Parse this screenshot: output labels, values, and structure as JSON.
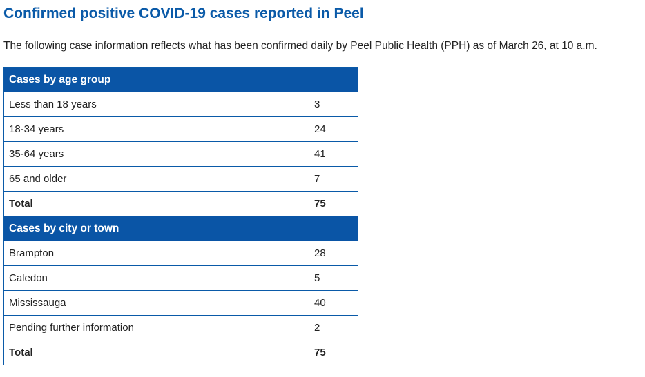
{
  "page": {
    "title": "Confirmed positive COVID-19 cases reported in Peel",
    "intro": "The following case information reflects what has been confirmed daily by Peel Public Health (PPH) as of March 26, at 10 a.m."
  },
  "age_section": {
    "header": "Cases by age group",
    "rows": [
      {
        "label": "Less than 18 years",
        "value": "3"
      },
      {
        "label": "18-34 years",
        "value": "24"
      },
      {
        "label": "35-64 years",
        "value": "41"
      },
      {
        "label": "65 and older",
        "value": "7"
      }
    ],
    "total": {
      "label": "Total",
      "value": "75"
    }
  },
  "city_section": {
    "header": "Cases by city or town",
    "rows": [
      {
        "label": "Brampton",
        "value": "28"
      },
      {
        "label": "Caledon",
        "value": "5"
      },
      {
        "label": "Mississauga",
        "value": "40"
      },
      {
        "label": "Pending further information",
        "value": "2"
      }
    ],
    "total": {
      "label": "Total",
      "value": "75"
    }
  },
  "colors": {
    "accent": "#0a55a6",
    "title": "#0a5aa8",
    "text": "#222222"
  }
}
